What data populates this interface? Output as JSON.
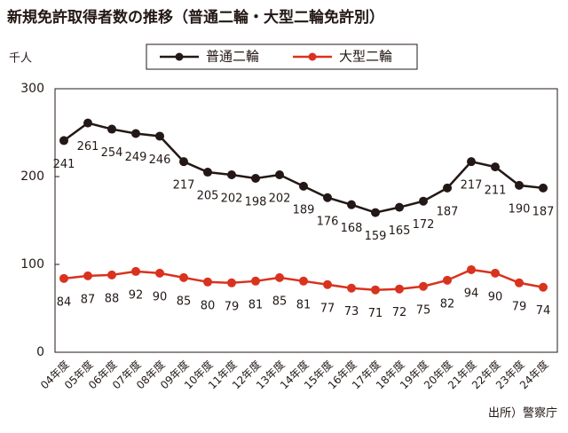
{
  "chart_data": {
    "type": "line",
    "title": "新規免許取得者数の推移（普通二輪・大型二輪免許別）",
    "y_label": "千人",
    "source": "出所）警察庁",
    "categories": [
      "04年度",
      "05年度",
      "06年度",
      "07年度",
      "08年度",
      "09年度",
      "10年度",
      "11年度",
      "12年度",
      "13年度",
      "14年度",
      "15年度",
      "16年度",
      "17年度",
      "18年度",
      "19年度",
      "20年度",
      "21年度",
      "22年度",
      "23年度",
      "24年度"
    ],
    "series": [
      {
        "name": "普通二輪",
        "color": "#231815",
        "values": [
          241,
          261,
          254,
          249,
          246,
          217,
          205,
          202,
          198,
          202,
          189,
          176,
          168,
          159,
          165,
          172,
          187,
          217,
          211,
          190,
          187
        ]
      },
      {
        "name": "大型二輪",
        "color": "#d9321e",
        "values": [
          84,
          87,
          88,
          92,
          90,
          85,
          80,
          79,
          81,
          85,
          81,
          77,
          73,
          71,
          72,
          75,
          82,
          94,
          90,
          79,
          74
        ]
      }
    ],
    "ylim": [
      0,
      300
    ],
    "yticks": [
      0,
      100,
      200,
      300
    ],
    "legend": "top",
    "data_labels": true
  }
}
